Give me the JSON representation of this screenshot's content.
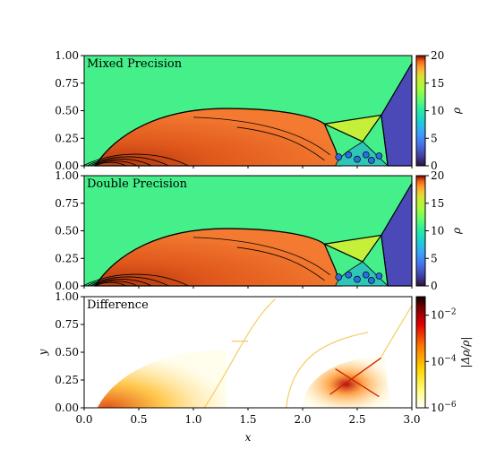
{
  "chart_data": [
    {
      "type": "heatmap",
      "title": "Mixed Precision",
      "ylim": [
        0,
        1.0
      ],
      "xlim": [
        0,
        3.0
      ],
      "yticks": [
        "0.00",
        "0.25",
        "0.50",
        "0.75",
        "1.00"
      ],
      "colorbar": {
        "label": "ρ",
        "ticks": [
          "0",
          "5",
          "10",
          "15",
          "20"
        ],
        "range": [
          0,
          20
        ],
        "colormap": "turbo"
      },
      "ambient_color": "#45f08a",
      "regions": [
        {
          "name": "unshocked-gas",
          "value": 8
        },
        {
          "name": "post-shock-dome",
          "value": 17.5
        },
        {
          "name": "mach-stem-triangle",
          "value": 12.5
        },
        {
          "name": "shock-front",
          "value": 1.4
        }
      ]
    },
    {
      "type": "heatmap",
      "title": "Double Precision",
      "ylim": [
        0,
        1.0
      ],
      "xlim": [
        0,
        3.0
      ],
      "yticks": [
        "0.00",
        "0.25",
        "0.50",
        "0.75",
        "1.00"
      ],
      "colorbar": {
        "label": "ρ",
        "ticks": [
          "0",
          "5",
          "10",
          "15",
          "20"
        ],
        "range": [
          0,
          20
        ],
        "colormap": "turbo"
      },
      "ambient_color": "#45f08a",
      "regions": [
        {
          "name": "unshocked-gas",
          "value": 8
        },
        {
          "name": "post-shock-dome",
          "value": 17.5
        },
        {
          "name": "mach-stem-triangle",
          "value": 12.5
        },
        {
          "name": "shock-front",
          "value": 1.4
        }
      ]
    },
    {
      "type": "heatmap",
      "title": "Difference",
      "ylim": [
        0,
        1.0
      ],
      "xlim": [
        0,
        3.0
      ],
      "xlabel": "x",
      "ylabel": "y",
      "yticks": [
        "0.00",
        "0.25",
        "0.50",
        "0.75",
        "1.00"
      ],
      "xticks": [
        "0.0",
        "0.5",
        "1.0",
        "1.5",
        "2.0",
        "2.5",
        "3.0"
      ],
      "colorbar": {
        "label": "|Δρ/ρ|",
        "scale": "log",
        "ticks": [
          {
            "base": "10",
            "exp": "−2"
          },
          {
            "base": "10",
            "exp": "−4"
          },
          {
            "base": "10",
            "exp": "−6"
          }
        ],
        "colormap": "hot_r"
      }
    }
  ]
}
